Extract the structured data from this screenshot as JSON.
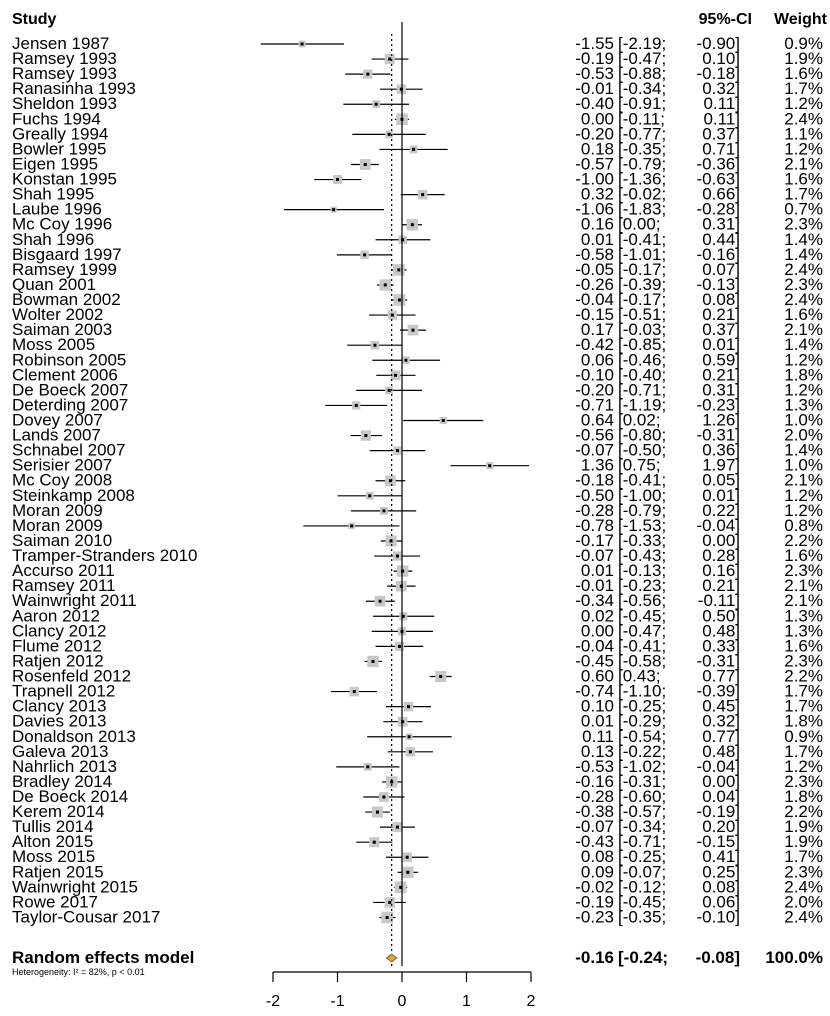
{
  "chart_data": {
    "type": "forest",
    "headers": {
      "study": "Study",
      "ci": "95%-CI",
      "weight": "Weight"
    },
    "xlim": [
      -2,
      2
    ],
    "xticks": [
      "-2",
      "-1",
      "0",
      "1",
      "2"
    ],
    "reference_line": 0,
    "studies": [
      {
        "name": "Jensen 1987",
        "est": "-1.55",
        "lo": "-2.19",
        "hi": "-0.90",
        "weight": "0.9%"
      },
      {
        "name": "Ramsey 1993",
        "est": "-0.19",
        "lo": "-0.47",
        "hi": "0.10",
        "weight": "1.9%"
      },
      {
        "name": "Ramsey 1993",
        "est": "-0.53",
        "lo": "-0.88",
        "hi": "-0.18",
        "weight": "1.6%"
      },
      {
        "name": "Ranasinha 1993",
        "est": "-0.01",
        "lo": "-0.34",
        "hi": "0.32",
        "weight": "1.7%"
      },
      {
        "name": "Sheldon 1993",
        "est": "-0.40",
        "lo": "-0.91",
        "hi": "0.11",
        "weight": "1.2%"
      },
      {
        "name": "Fuchs 1994",
        "est": "0.00",
        "lo": "-0.11",
        "hi": "0.11",
        "weight": "2.4%"
      },
      {
        "name": "Greally 1994",
        "est": "-0.20",
        "lo": "-0.77",
        "hi": "0.37",
        "weight": "1.1%"
      },
      {
        "name": "Bowler 1995",
        "est": "0.18",
        "lo": "-0.35",
        "hi": "0.71",
        "weight": "1.2%"
      },
      {
        "name": "Eigen 1995",
        "est": "-0.57",
        "lo": "-0.79",
        "hi": "-0.36",
        "weight": "2.1%"
      },
      {
        "name": "Konstan 1995",
        "est": "-1.00",
        "lo": "-1.36",
        "hi": "-0.63",
        "weight": "1.6%"
      },
      {
        "name": "Shah 1995",
        "est": "0.32",
        "lo": "-0.02",
        "hi": "0.66",
        "weight": "1.7%"
      },
      {
        "name": "Laube 1996",
        "est": "-1.06",
        "lo": "-1.83",
        "hi": "-0.28",
        "weight": "0.7%"
      },
      {
        "name": "Mc Coy 1996",
        "est": "0.16",
        "lo": "0.00",
        "hi": "0.31",
        "weight": "2.3%"
      },
      {
        "name": "Shah 1996",
        "est": "0.01",
        "lo": "-0.41",
        "hi": "0.44",
        "weight": "1.4%"
      },
      {
        "name": "Bisgaard 1997",
        "est": "-0.58",
        "lo": "-1.01",
        "hi": "-0.16",
        "weight": "1.4%"
      },
      {
        "name": "Ramsey 1999",
        "est": "-0.05",
        "lo": "-0.17",
        "hi": "0.07",
        "weight": "2.4%"
      },
      {
        "name": "Quan 2001",
        "est": "-0.26",
        "lo": "-0.39",
        "hi": "-0.13",
        "weight": "2.3%"
      },
      {
        "name": "Bowman 2002",
        "est": "-0.04",
        "lo": "-0.17",
        "hi": "0.08",
        "weight": "2.4%"
      },
      {
        "name": "Wolter 2002",
        "est": "-0.15",
        "lo": "-0.51",
        "hi": "0.21",
        "weight": "1.6%"
      },
      {
        "name": "Saiman 2003",
        "est": "0.17",
        "lo": "-0.03",
        "hi": "0.37",
        "weight": "2.1%"
      },
      {
        "name": "Moss 2005",
        "est": "-0.42",
        "lo": "-0.85",
        "hi": "0.01",
        "weight": "1.4%"
      },
      {
        "name": "Robinson 2005",
        "est": "0.06",
        "lo": "-0.46",
        "hi": "0.59",
        "weight": "1.2%"
      },
      {
        "name": "Clement 2006",
        "est": "-0.10",
        "lo": "-0.40",
        "hi": "0.21",
        "weight": "1.8%"
      },
      {
        "name": "De Boeck 2007",
        "est": "-0.20",
        "lo": "-0.71",
        "hi": "0.31",
        "weight": "1.2%"
      },
      {
        "name": "Deterding 2007",
        "est": "-0.71",
        "lo": "-1.19",
        "hi": "-0.23",
        "weight": "1.3%"
      },
      {
        "name": "Dovey 2007",
        "est": "0.64",
        "lo": "0.02",
        "hi": "1.26",
        "weight": "1.0%"
      },
      {
        "name": "Lands 2007",
        "est": "-0.56",
        "lo": "-0.80",
        "hi": "-0.31",
        "weight": "2.0%"
      },
      {
        "name": "Schnabel 2007",
        "est": "-0.07",
        "lo": "-0.50",
        "hi": "0.36",
        "weight": "1.4%"
      },
      {
        "name": "Serisier 2007",
        "est": "1.36",
        "lo": "0.75",
        "hi": "1.97",
        "weight": "1.0%"
      },
      {
        "name": "Mc Coy 2008",
        "est": "-0.18",
        "lo": "-0.41",
        "hi": "0.05",
        "weight": "2.1%"
      },
      {
        "name": "Steinkamp 2008",
        "est": "-0.50",
        "lo": "-1.00",
        "hi": "0.01",
        "weight": "1.2%"
      },
      {
        "name": "Moran 2009",
        "est": "-0.28",
        "lo": "-0.79",
        "hi": "0.22",
        "weight": "1.2%"
      },
      {
        "name": "Moran 2009",
        "est": "-0.78",
        "lo": "-1.53",
        "hi": "-0.04",
        "weight": "0.8%"
      },
      {
        "name": "Saiman 2010",
        "est": "-0.17",
        "lo": "-0.33",
        "hi": "0.00",
        "weight": "2.2%"
      },
      {
        "name": "Tramper-Stranders 2010",
        "est": "-0.07",
        "lo": "-0.43",
        "hi": "0.28",
        "weight": "1.6%"
      },
      {
        "name": "Accurso 2011",
        "est": "0.01",
        "lo": "-0.13",
        "hi": "0.16",
        "weight": "2.3%"
      },
      {
        "name": "Ramsey 2011",
        "est": "-0.01",
        "lo": "-0.23",
        "hi": "0.21",
        "weight": "2.1%"
      },
      {
        "name": "Wainwright 2011",
        "est": "-0.34",
        "lo": "-0.56",
        "hi": "-0.11",
        "weight": "2.1%"
      },
      {
        "name": "Aaron 2012",
        "est": "0.02",
        "lo": "-0.45",
        "hi": "0.50",
        "weight": "1.3%"
      },
      {
        "name": "Clancy 2012",
        "est": "0.00",
        "lo": "-0.47",
        "hi": "0.48",
        "weight": "1.3%"
      },
      {
        "name": "Flume 2012",
        "est": "-0.04",
        "lo": "-0.41",
        "hi": "0.33",
        "weight": "1.6%"
      },
      {
        "name": "Ratjen 2012",
        "est": "-0.45",
        "lo": "-0.58",
        "hi": "-0.31",
        "weight": "2.3%"
      },
      {
        "name": "Rosenfeld 2012",
        "est": "0.60",
        "lo": "0.43",
        "hi": "0.77",
        "weight": "2.2%"
      },
      {
        "name": "Trapnell 2012",
        "est": "-0.74",
        "lo": "-1.10",
        "hi": "-0.39",
        "weight": "1.7%"
      },
      {
        "name": "Clancy 2013",
        "est": "0.10",
        "lo": "-0.25",
        "hi": "0.45",
        "weight": "1.7%"
      },
      {
        "name": "Davies 2013",
        "est": "0.01",
        "lo": "-0.29",
        "hi": "0.32",
        "weight": "1.8%"
      },
      {
        "name": "Donaldson 2013",
        "est": "0.11",
        "lo": "-0.54",
        "hi": "0.77",
        "weight": "0.9%"
      },
      {
        "name": "Galeva 2013",
        "est": "0.13",
        "lo": "-0.22",
        "hi": "0.48",
        "weight": "1.7%"
      },
      {
        "name": "Nahrlich 2013",
        "est": "-0.53",
        "lo": "-1.02",
        "hi": "-0.04",
        "weight": "1.2%"
      },
      {
        "name": "Bradley 2014",
        "est": "-0.16",
        "lo": "-0.31",
        "hi": "0.00",
        "weight": "2.3%"
      },
      {
        "name": "De Boeck 2014",
        "est": "-0.28",
        "lo": "-0.60",
        "hi": "0.04",
        "weight": "1.8%"
      },
      {
        "name": "Kerem 2014",
        "est": "-0.38",
        "lo": "-0.57",
        "hi": "-0.19",
        "weight": "2.2%"
      },
      {
        "name": "Tullis 2014",
        "est": "-0.07",
        "lo": "-0.34",
        "hi": "0.20",
        "weight": "1.9%"
      },
      {
        "name": "Alton 2015",
        "est": "-0.43",
        "lo": "-0.71",
        "hi": "-0.15",
        "weight": "1.9%"
      },
      {
        "name": "Moss 2015",
        "est": "0.08",
        "lo": "-0.25",
        "hi": "0.41",
        "weight": "1.7%"
      },
      {
        "name": "Ratjen 2015",
        "est": "0.09",
        "lo": "-0.07",
        "hi": "0.25",
        "weight": "2.3%"
      },
      {
        "name": "Wainwright 2015",
        "est": "-0.02",
        "lo": "-0.12",
        "hi": "0.08",
        "weight": "2.4%"
      },
      {
        "name": "Rowe 2017",
        "est": "-0.19",
        "lo": "-0.45",
        "hi": "0.06",
        "weight": "2.0%"
      },
      {
        "name": "Taylor-Cousar 2017",
        "est": "-0.23",
        "lo": "-0.35",
        "hi": "-0.10",
        "weight": "2.4%"
      }
    ],
    "summary": {
      "label": "Random effects model",
      "est": "-0.16",
      "lo": "-0.24",
      "hi": "-0.08",
      "weight": "100.0%"
    },
    "heterogeneity": "Heterogeneity: I² = 82%, p < 0.01",
    "colors": {
      "box": "#c8c8c8",
      "diamond": "#d9a441",
      "line": "#000000"
    }
  }
}
